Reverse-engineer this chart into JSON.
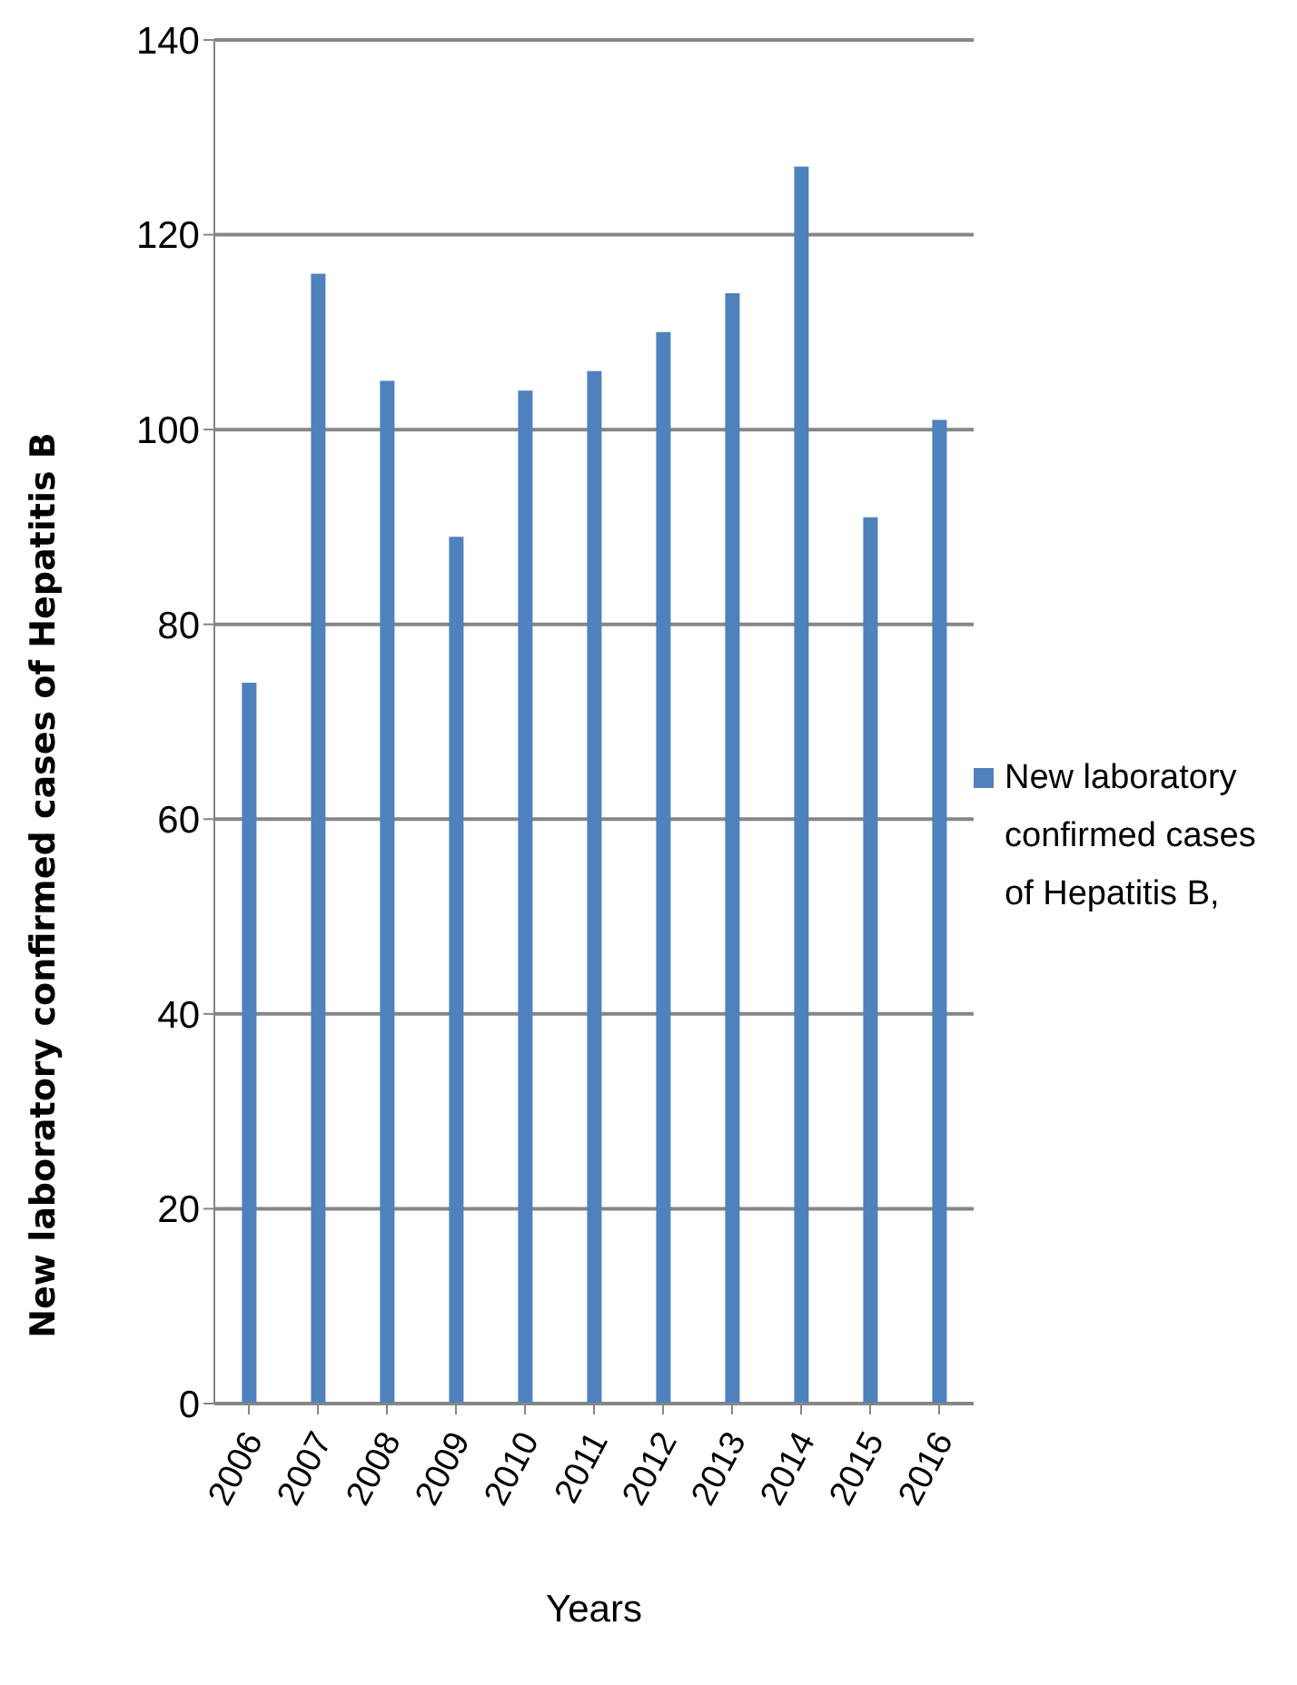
{
  "chart_data": {
    "type": "bar",
    "xlabel": "Years",
    "ylabel": "New laboratory  confirmed cases of Hepatitis B",
    "categories": [
      "2006",
      "2007",
      "2008",
      "2009",
      "2010",
      "2011",
      "2012",
      "2013",
      "2014",
      "2015",
      "2016"
    ],
    "series": [
      {
        "name": "New laboratory confirmed cases of Hepatitis B,",
        "color": "#4f81bd",
        "values": [
          74,
          116,
          105,
          89,
          104,
          106,
          110,
          114,
          127,
          91,
          101
        ]
      }
    ],
    "ylim": [
      0,
      140
    ],
    "yticks": [
      0,
      20,
      40,
      60,
      80,
      100,
      120,
      140
    ],
    "grid": "y",
    "legend": "right"
  }
}
